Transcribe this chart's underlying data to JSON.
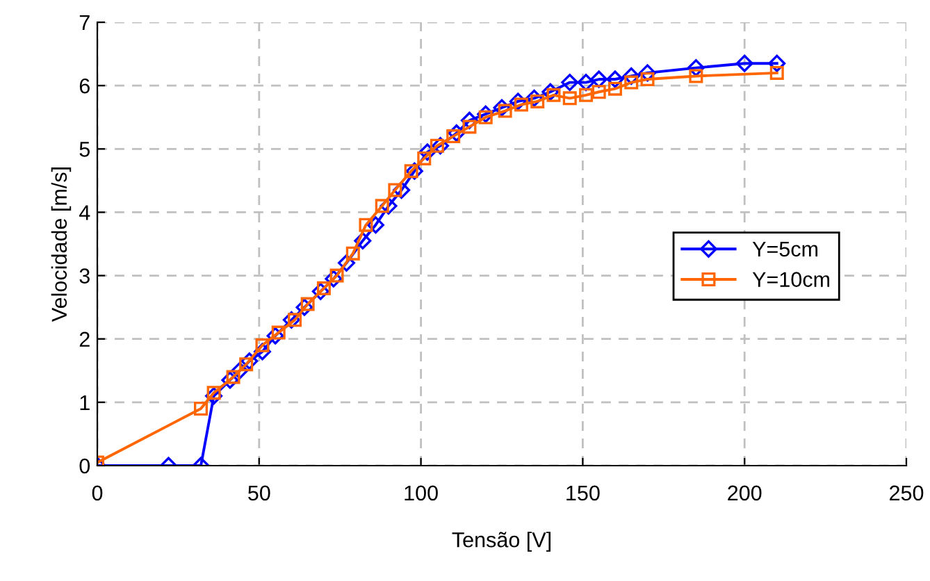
{
  "chart_data": {
    "type": "line",
    "xlabel": "Tensão [V]",
    "ylabel": "Velocidade [m/s]",
    "xlim": [
      0,
      250
    ],
    "xticks": [
      0,
      50,
      100,
      150,
      200,
      250
    ],
    "ylim": [
      0,
      7
    ],
    "yticks": [
      0,
      1,
      2,
      3,
      4,
      5,
      6,
      7
    ],
    "grid": true,
    "legend": "right",
    "line_style": "solid",
    "series": [
      {
        "name": "Y=5cm",
        "color": "#0000ff",
        "marker": "diamond",
        "x": [
          0,
          22,
          32,
          36,
          41,
          44,
          47,
          51,
          55,
          60,
          64,
          69,
          73,
          77,
          82,
          86,
          90,
          94,
          98,
          102,
          106,
          111,
          115,
          120,
          125,
          130,
          135,
          140,
          146,
          151,
          155,
          160,
          165,
          170,
          185,
          200,
          210
        ],
        "values": [
          0,
          0,
          0,
          1.1,
          1.35,
          1.5,
          1.65,
          1.8,
          2.05,
          2.3,
          2.5,
          2.75,
          2.95,
          3.2,
          3.55,
          3.8,
          4.1,
          4.35,
          4.65,
          4.95,
          5.05,
          5.25,
          5.45,
          5.55,
          5.65,
          5.75,
          5.8,
          5.9,
          6.05,
          6.05,
          6.1,
          6.1,
          6.15,
          6.2,
          6.28,
          6.35,
          6.35
        ]
      },
      {
        "name": "Y=10cm",
        "color": "#ff6600",
        "marker": "square",
        "x": [
          0,
          32,
          36,
          42,
          46,
          51,
          56,
          61,
          65,
          70,
          74,
          79,
          83,
          88,
          92,
          97,
          101,
          105,
          110,
          115,
          120,
          126,
          131,
          136,
          141,
          146,
          151,
          155,
          160,
          165,
          170,
          185,
          210
        ],
        "values": [
          0.05,
          0.9,
          1.15,
          1.4,
          1.6,
          1.9,
          2.1,
          2.3,
          2.55,
          2.8,
          3.0,
          3.35,
          3.8,
          4.1,
          4.35,
          4.65,
          4.85,
          5.05,
          5.2,
          5.35,
          5.5,
          5.6,
          5.7,
          5.75,
          5.85,
          5.8,
          5.85,
          5.9,
          5.95,
          6.05,
          6.1,
          6.15,
          6.2
        ]
      }
    ]
  }
}
